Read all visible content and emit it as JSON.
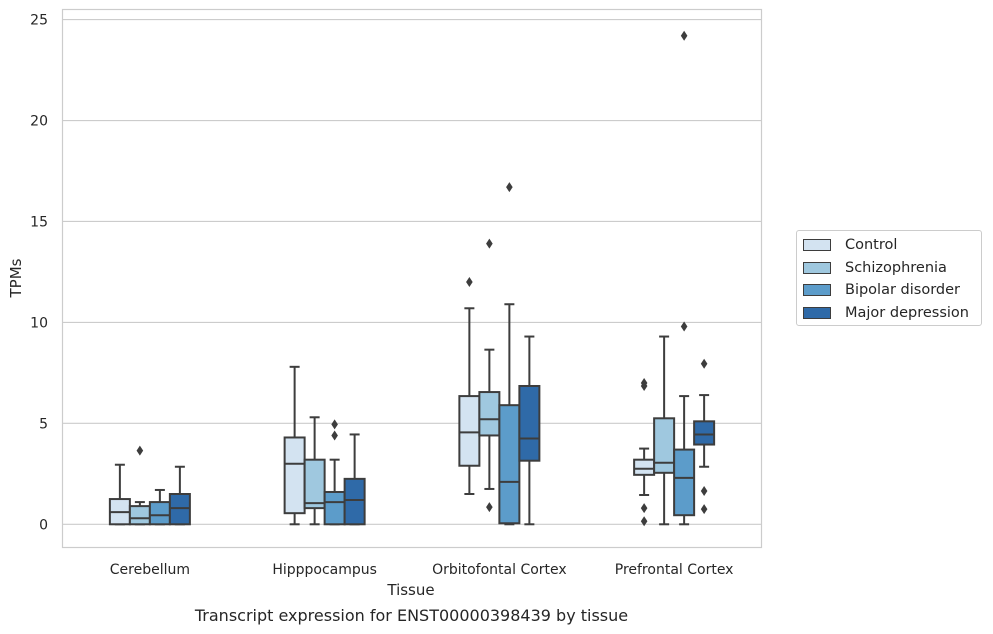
{
  "caption": "Transcript expression for ENST00000398439 by tissue",
  "chart_data": {
    "type": "box",
    "title": "",
    "xlabel": "Tissue",
    "ylabel": "TPMs",
    "ylim": [
      -1.15,
      25.5
    ],
    "yticks": [
      0,
      5,
      10,
      15,
      20,
      25
    ],
    "grid": "horizontal",
    "legend_position": "right",
    "categories": [
      "Cerebellum",
      "Hipppocampus",
      "Orbitofontal Cortex",
      "Prefrontal Cortex"
    ],
    "series": [
      {
        "name": "Control",
        "color": "#d3e3f1",
        "boxes": [
          {
            "whisker_low": 0.0,
            "q1": 0.0,
            "median": 0.6,
            "q3": 1.25,
            "whisker_high": 2.95,
            "outliers": []
          },
          {
            "whisker_low": 0.0,
            "q1": 0.55,
            "median": 3.0,
            "q3": 4.3,
            "whisker_high": 7.8,
            "outliers": []
          },
          {
            "whisker_low": 1.5,
            "q1": 2.9,
            "median": 4.55,
            "q3": 6.35,
            "whisker_high": 10.7,
            "outliers": [
              12.0
            ]
          },
          {
            "whisker_low": 1.45,
            "q1": 2.45,
            "median": 2.75,
            "q3": 3.2,
            "whisker_high": 3.75,
            "outliers": [
              0.15,
              0.8,
              6.85,
              7.0
            ]
          }
        ]
      },
      {
        "name": "Schizophrenia",
        "color": "#9fc8df",
        "boxes": [
          {
            "whisker_low": 0.0,
            "q1": 0.0,
            "median": 0.3,
            "q3": 0.9,
            "whisker_high": 1.1,
            "outliers": [
              3.65
            ]
          },
          {
            "whisker_low": 0.0,
            "q1": 0.8,
            "median": 1.05,
            "q3": 3.2,
            "whisker_high": 5.3,
            "outliers": []
          },
          {
            "whisker_low": 1.75,
            "q1": 4.4,
            "median": 5.2,
            "q3": 6.55,
            "whisker_high": 8.65,
            "outliers": [
              0.85,
              13.9
            ]
          },
          {
            "whisker_low": 0.0,
            "q1": 2.55,
            "median": 3.05,
            "q3": 5.25,
            "whisker_high": 9.3,
            "outliers": []
          }
        ]
      },
      {
        "name": "Bipolar disorder",
        "color": "#5c9cca",
        "boxes": [
          {
            "whisker_low": 0.0,
            "q1": 0.0,
            "median": 0.45,
            "q3": 1.1,
            "whisker_high": 1.7,
            "outliers": []
          },
          {
            "whisker_low": 0.0,
            "q1": 0.0,
            "median": 1.1,
            "q3": 1.6,
            "whisker_high": 3.2,
            "outliers": [
              4.4,
              4.95
            ]
          },
          {
            "whisker_low": 0.0,
            "q1": 0.05,
            "median": 2.1,
            "q3": 5.9,
            "whisker_high": 10.9,
            "outliers": [
              16.7
            ]
          },
          {
            "whisker_low": 0.0,
            "q1": 0.45,
            "median": 2.3,
            "q3": 3.7,
            "whisker_high": 6.35,
            "outliers": [
              9.8,
              24.2
            ]
          }
        ]
      },
      {
        "name": "Major depression",
        "color": "#2f6aa8",
        "boxes": [
          {
            "whisker_low": 0.0,
            "q1": 0.0,
            "median": 0.8,
            "q3": 1.5,
            "whisker_high": 2.85,
            "outliers": []
          },
          {
            "whisker_low": 0.0,
            "q1": 0.0,
            "median": 1.2,
            "q3": 2.25,
            "whisker_high": 4.45,
            "outliers": []
          },
          {
            "whisker_low": 0.0,
            "q1": 3.15,
            "median": 4.25,
            "q3": 6.85,
            "whisker_high": 9.3,
            "outliers": []
          },
          {
            "whisker_low": 2.85,
            "q1": 3.95,
            "median": 4.45,
            "q3": 5.1,
            "whisker_high": 6.4,
            "outliers": [
              0.75,
              1.65,
              7.95
            ]
          }
        ]
      }
    ]
  }
}
